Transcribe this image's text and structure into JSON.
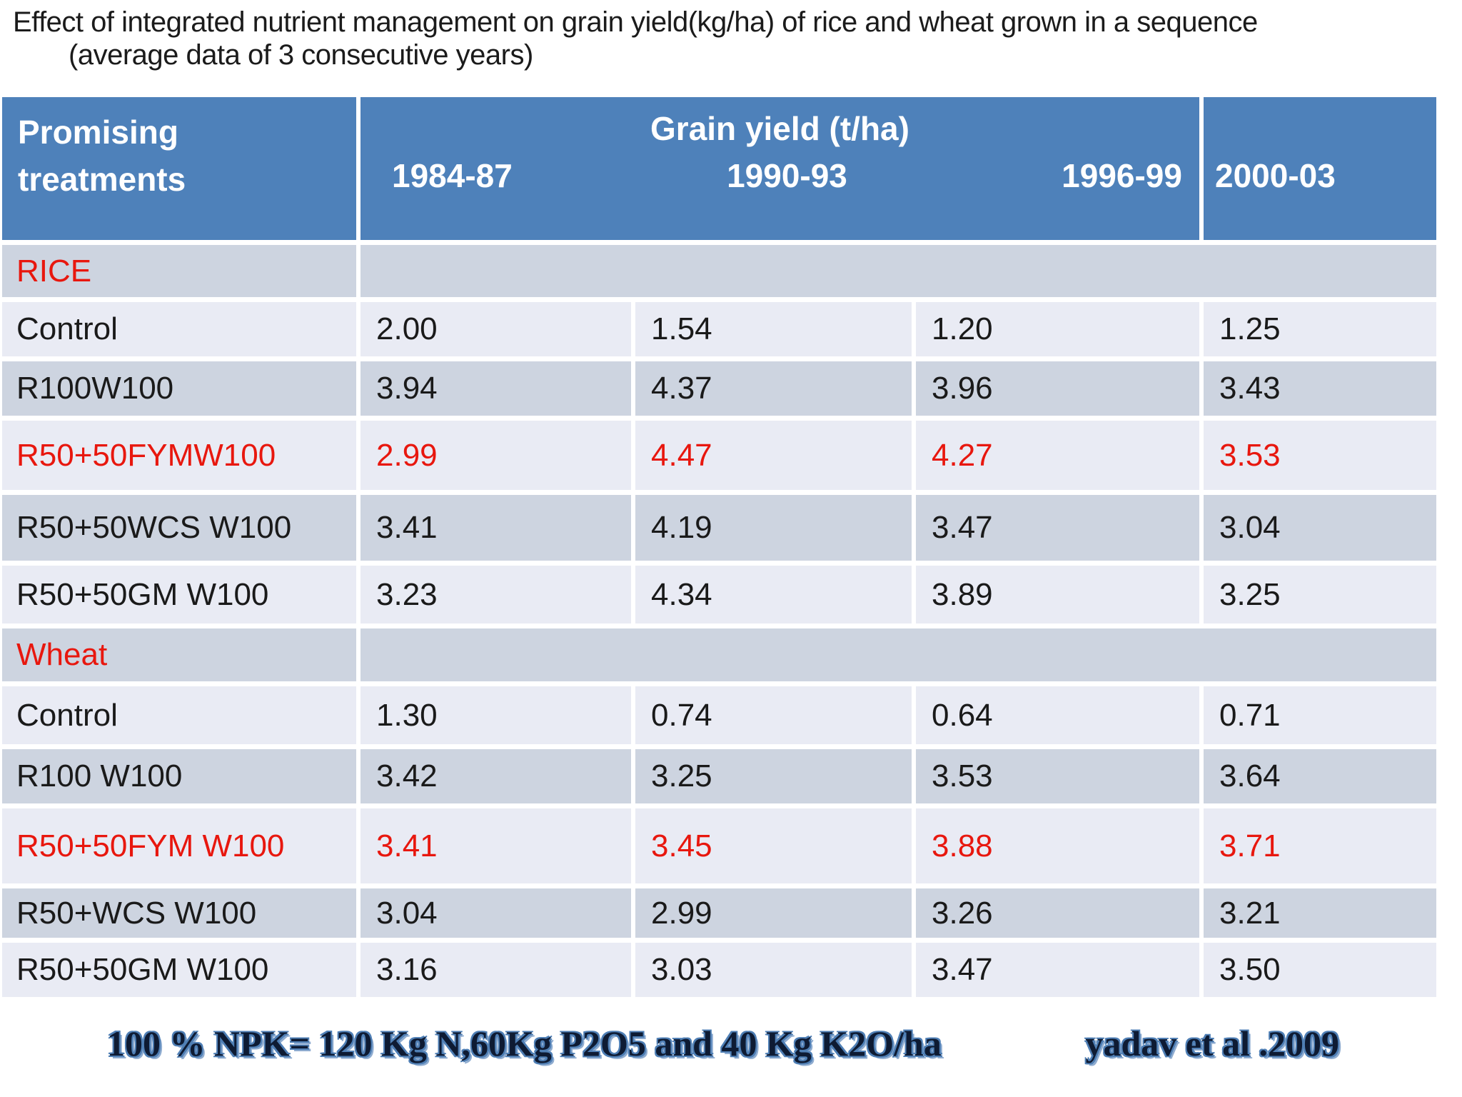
{
  "title": {
    "line1": "Effect of integrated nutrient management on grain yield(kg/ha) of rice and wheat grown in a sequence",
    "line2": "(average data of 3 consecutive years)"
  },
  "table": {
    "col1_header": "Promising treatments",
    "grain_header": "Grain yield (t/ha)",
    "year_headers": [
      "1984-87",
      "1990-93",
      "1996-99"
    ],
    "year_header_last": "2000-03",
    "rows": [
      {
        "type": "section",
        "label": "RICE"
      },
      {
        "type": "data",
        "label": "Control",
        "values": [
          "2.00",
          "1.54",
          "1.20",
          "1.25"
        ]
      },
      {
        "type": "data",
        "label": "R100W100",
        "values": [
          "3.94",
          "4.37",
          "3.96",
          "3.43"
        ]
      },
      {
        "type": "data",
        "label": "R50+50FYMW100",
        "values": [
          "2.99",
          "4.47",
          "4.27",
          "3.53"
        ],
        "highlight": true
      },
      {
        "type": "data",
        "label": "R50+50WCS W100",
        "values": [
          "3.41",
          "4.19",
          "3.47",
          "3.04"
        ]
      },
      {
        "type": "data",
        "label": "R50+50GM W100",
        "values": [
          "3.23",
          "4.34",
          "3.89",
          "3.25"
        ]
      },
      {
        "type": "section",
        "label": "Wheat"
      },
      {
        "type": "data",
        "label": "Control",
        "values": [
          "1.30",
          "0.74",
          "0.64",
          "0.71"
        ]
      },
      {
        "type": "data",
        "label": "R100 W100",
        "values": [
          "3.42",
          "3.25",
          "3.53",
          "3.64"
        ]
      },
      {
        "type": "data",
        "label": "R50+50FYM W100",
        "values": [
          "3.41",
          "3.45",
          "3.88",
          "3.71"
        ],
        "highlight": true
      },
      {
        "type": "data",
        "label": "R50+WCS W100",
        "values": [
          "3.04",
          "2.99",
          "3.26",
          "3.21"
        ]
      },
      {
        "type": "data",
        "label": "R50+50GM W100",
        "values": [
          "3.16",
          "3.03",
          "3.47",
          "3.50"
        ]
      }
    ]
  },
  "footer": {
    "npk_note": "100 % NPK= 120 Kg N,60Kg P2O5 and 40 Kg K2O/ha",
    "citation": "yadav et al .2009"
  },
  "colors": {
    "header_bg": "#4E81BA",
    "row_dark": "#CDD4E0",
    "row_light": "#E9EBF4",
    "highlight_text": "#E8170E",
    "footer_text": "#0E1B33",
    "footer_outline": "#4F7FB5"
  }
}
